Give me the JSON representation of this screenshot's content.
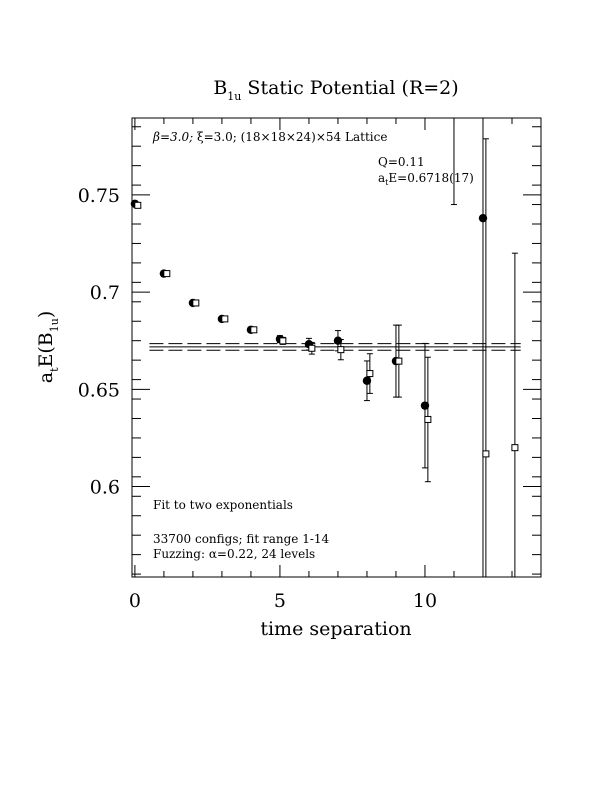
{
  "chart_data": {
    "type": "scatter",
    "title": {
      "prefix": "B",
      "subscript": "1u",
      "suffix": " Static Potential (R=2)"
    },
    "xlabel": "time separation",
    "ylabel": {
      "prefix": "a",
      "sub1": "t",
      "mid": "E(B",
      "sub2": "1u",
      "suffix": ")"
    },
    "xlim": [
      -0.1,
      14
    ],
    "ylim": [
      0.5535,
      0.7895
    ],
    "x_ticks": [
      0,
      5,
      10
    ],
    "x_tick_labels": [
      "0",
      "5",
      "10"
    ],
    "y_ticks": [
      0.6,
      0.65,
      0.7,
      0.75
    ],
    "y_tick_labels": [
      "0.6",
      "0.65",
      "0.7",
      "0.75"
    ],
    "annotations": {
      "lattice_beta": "β=3.0;",
      "lattice_xi": "ξ=3.0;",
      "lattice_size": "(18×18×24)×54 Lattice",
      "q_value": "Q=0.11",
      "energy_prefix": "a",
      "energy_sub": "t",
      "energy_value": "E=0.6718(17)",
      "fit_method": "Fit to two exponentials",
      "configs": "33700 configs; fit range 1-14",
      "fuzzing_prefix": "Fuzzing: ",
      "fuzzing_alpha": "α=0.22, 24 levels"
    },
    "fit": {
      "central": 0.6718,
      "error": 0.0017,
      "x_range": [
        1,
        13.3
      ]
    },
    "series": [
      {
        "marker": "filled-circle",
        "points": [
          {
            "x": 0,
            "y": 0.7454,
            "err": 0.0004
          },
          {
            "x": 1,
            "y": 0.7095,
            "err": 0.0006
          },
          {
            "x": 2,
            "y": 0.6944,
            "err": 0.0008
          },
          {
            "x": 3,
            "y": 0.6862,
            "err": 0.001
          },
          {
            "x": 4,
            "y": 0.6806,
            "err": 0.0013
          },
          {
            "x": 5,
            "y": 0.6758,
            "err": 0.0018
          },
          {
            "x": 6,
            "y": 0.6732,
            "err": 0.003
          },
          {
            "x": 7,
            "y": 0.675,
            "err": 0.0052
          },
          {
            "x": 8,
            "y": 0.6544,
            "err": 0.0102
          },
          {
            "x": 9,
            "y": 0.6645,
            "err": 0.0185
          },
          {
            "x": 10,
            "y": 0.6416,
            "err": 0.032
          },
          {
            "x": 11,
            "y": 0.8,
            "err": 0.055
          },
          {
            "x": 12,
            "y": 0.738,
            "err": 0.2
          }
        ]
      },
      {
        "marker": "open-square",
        "points": [
          {
            "x": 0.1,
            "y": 0.7446,
            "err": 0.0004
          },
          {
            "x": 1.1,
            "y": 0.7095,
            "err": 0.0006
          },
          {
            "x": 2.1,
            "y": 0.6944,
            "err": 0.0008
          },
          {
            "x": 3.1,
            "y": 0.6862,
            "err": 0.001
          },
          {
            "x": 4.1,
            "y": 0.6806,
            "err": 0.0013
          },
          {
            "x": 5.1,
            "y": 0.6749,
            "err": 0.0018
          },
          {
            "x": 6.1,
            "y": 0.6711,
            "err": 0.003
          },
          {
            "x": 7.1,
            "y": 0.6704,
            "err": 0.0052
          },
          {
            "x": 8.1,
            "y": 0.6581,
            "err": 0.0102
          },
          {
            "x": 9.1,
            "y": 0.6645,
            "err": 0.0185
          },
          {
            "x": 10.1,
            "y": 0.6345,
            "err": 0.032
          },
          {
            "x": 12.1,
            "y": 0.6168,
            "err": 0.162
          },
          {
            "x": 13.1,
            "y": 0.62,
            "err": 0.1
          }
        ]
      }
    ]
  }
}
